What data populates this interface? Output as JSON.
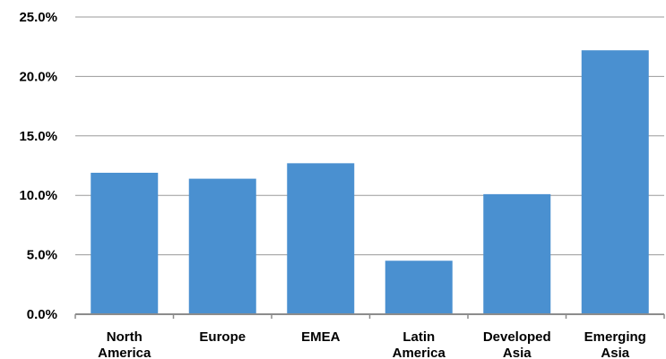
{
  "chart_data": {
    "type": "bar",
    "title": "",
    "xlabel": "",
    "ylabel": "",
    "categories": [
      [
        "North",
        "America"
      ],
      [
        "Europe"
      ],
      [
        "EMEA"
      ],
      [
        "Latin",
        "America"
      ],
      [
        "Developed",
        "Asia"
      ],
      [
        "Emerging",
        "Asia"
      ]
    ],
    "values": [
      11.9,
      11.4,
      12.7,
      4.5,
      10.1,
      22.2
    ],
    "value_unit": "%",
    "ylim": [
      0,
      25
    ],
    "yticks": [
      "0.0%",
      "5.0%",
      "10.0%",
      "15.0%",
      "20.0%",
      "25.0%"
    ],
    "ytick_values": [
      0,
      5,
      10,
      15,
      20,
      25
    ],
    "grid": true,
    "legend": "none",
    "bar_color": "#4a90d0",
    "grid_color": "#9a9a9a"
  }
}
